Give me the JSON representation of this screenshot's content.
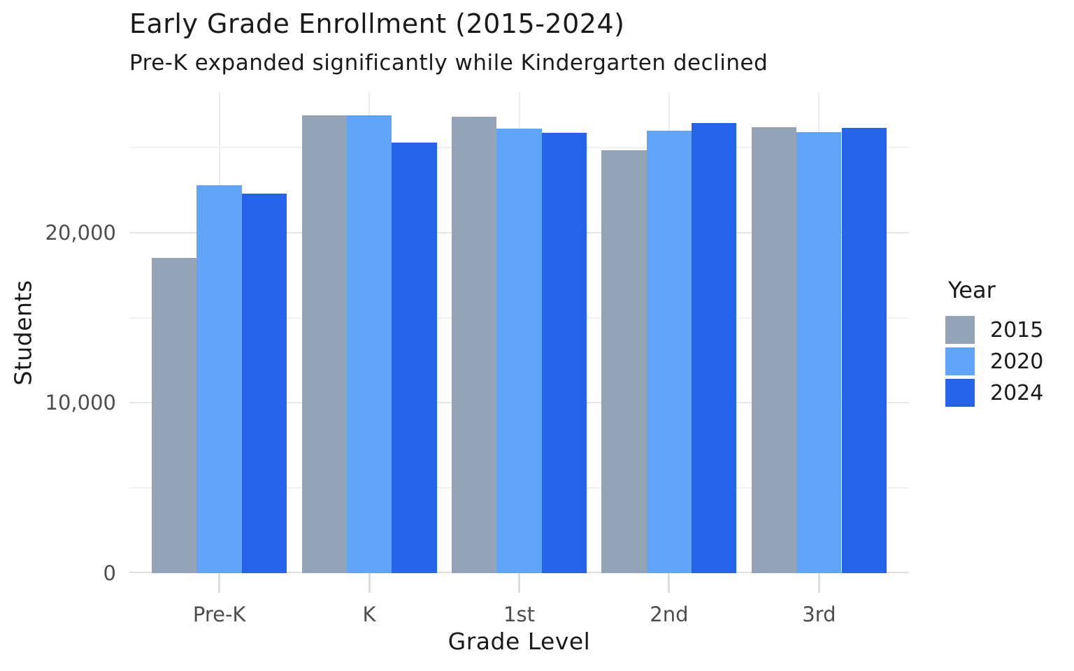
{
  "chart_data": {
    "type": "bar",
    "grouped": true,
    "title": "Early Grade Enrollment (2015-2024)",
    "subtitle": "Pre-K expanded significantly while Kindergarten declined",
    "xlabel": "Grade Level",
    "ylabel": "Students",
    "categories": [
      "Pre-K",
      "K",
      "1st",
      "2nd",
      "3rd"
    ],
    "series": [
      {
        "name": "2015",
        "color": "#94A3B8",
        "values": [
          18500,
          26900,
          26800,
          24850,
          26200
        ]
      },
      {
        "name": "2020",
        "color": "#60A5FA",
        "values": [
          22800,
          26900,
          26100,
          26000,
          25900
        ]
      },
      {
        "name": "2024",
        "color": "#2563EB",
        "values": [
          22300,
          25300,
          25850,
          26450,
          26150
        ]
      }
    ],
    "ylim": [
      0,
      28250
    ],
    "yticks": [
      {
        "value": 0,
        "label": "0"
      },
      {
        "value": 10000,
        "label": "10,000"
      },
      {
        "value": 20000,
        "label": "20,000"
      }
    ],
    "minor_gridline_step": 5000,
    "major_gridline_step": 10000,
    "grid": true,
    "legend": {
      "title": "Year",
      "position": "right"
    },
    "colors": {
      "background": "#FFFFFF",
      "major_gridline": "#E6E6E6",
      "minor_gridline": "#F2F2F2",
      "axis_line": "#DFDFDF",
      "tick_text": "#4D4D4D",
      "text": "#1A1A1A"
    }
  }
}
